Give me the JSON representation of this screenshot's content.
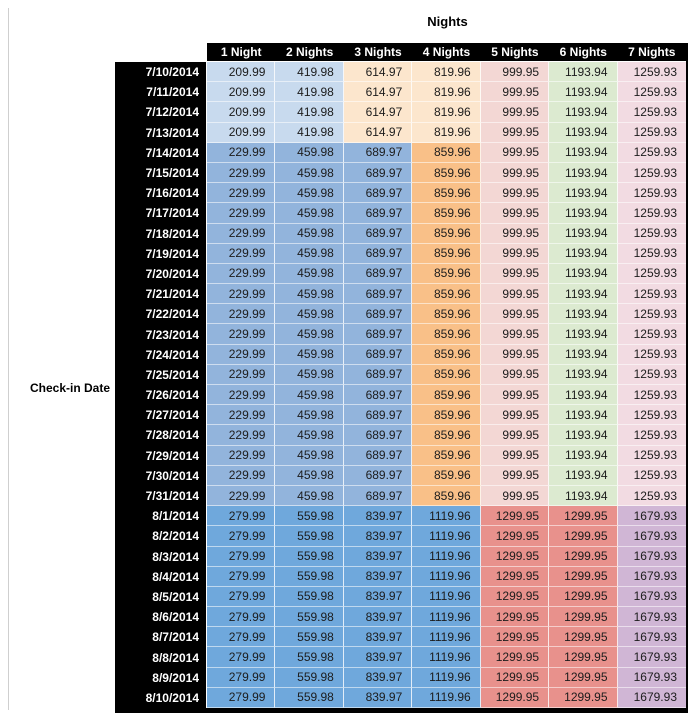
{
  "title": "Nights",
  "row_axis_label": "Check-in Date",
  "chart_data": {
    "type": "table",
    "title": "Nights",
    "row_axis_label": "Check-in Date",
    "columns": [
      "1 Night",
      "2 Nights",
      "3 Nights",
      "4 Nights",
      "5 Nights",
      "6 Nights",
      "7 Nights"
    ],
    "row_groups": [
      {
        "band": "band_a",
        "dates": [
          "7/10/2014",
          "7/11/2014",
          "7/12/2014",
          "7/13/2014"
        ],
        "values": [
          209.99,
          419.98,
          614.97,
          819.96,
          999.95,
          1193.94,
          1259.93
        ]
      },
      {
        "band": "band_b",
        "dates": [
          "7/14/2014",
          "7/15/2014",
          "7/16/2014",
          "7/17/2014",
          "7/18/2014",
          "7/19/2014",
          "7/20/2014",
          "7/21/2014",
          "7/22/2014",
          "7/23/2014",
          "7/24/2014",
          "7/25/2014",
          "7/26/2014",
          "7/27/2014",
          "7/28/2014",
          "7/29/2014",
          "7/30/2014",
          "7/31/2014"
        ],
        "values": [
          229.99,
          459.98,
          689.97,
          859.96,
          999.95,
          1193.94,
          1259.93
        ]
      },
      {
        "band": "band_c",
        "dates": [
          "8/1/2014",
          "8/2/2014",
          "8/3/2014",
          "8/4/2014",
          "8/5/2014",
          "8/6/2014",
          "8/7/2014",
          "8/8/2014",
          "8/9/2014",
          "8/10/2014"
        ],
        "values": [
          279.99,
          559.98,
          839.97,
          1119.96,
          1299.95,
          1299.95,
          1679.93
        ]
      }
    ],
    "cell_colors_by_band": {
      "band_a": [
        "#c8daee",
        "#c8daee",
        "#fce6cd",
        "#fce6cd",
        "#f3d7d4",
        "#dcead0",
        "#f2dbe2"
      ],
      "band_b": [
        "#92b4dc",
        "#92b4dc",
        "#92b4dc",
        "#f9c088",
        "#f3d7d4",
        "#dcead0",
        "#f2dbe2"
      ],
      "band_c": [
        "#6fa8dc",
        "#6fa8dc",
        "#6fa8dc",
        "#6fa8dc",
        "#e8918c",
        "#e8918c",
        "#d0b6d5"
      ]
    },
    "header_bg": "#000000",
    "header_text_color": "#ffffff",
    "value_text_color": "#1c1c1c",
    "legend_position": "none",
    "grid": "white-separators"
  }
}
